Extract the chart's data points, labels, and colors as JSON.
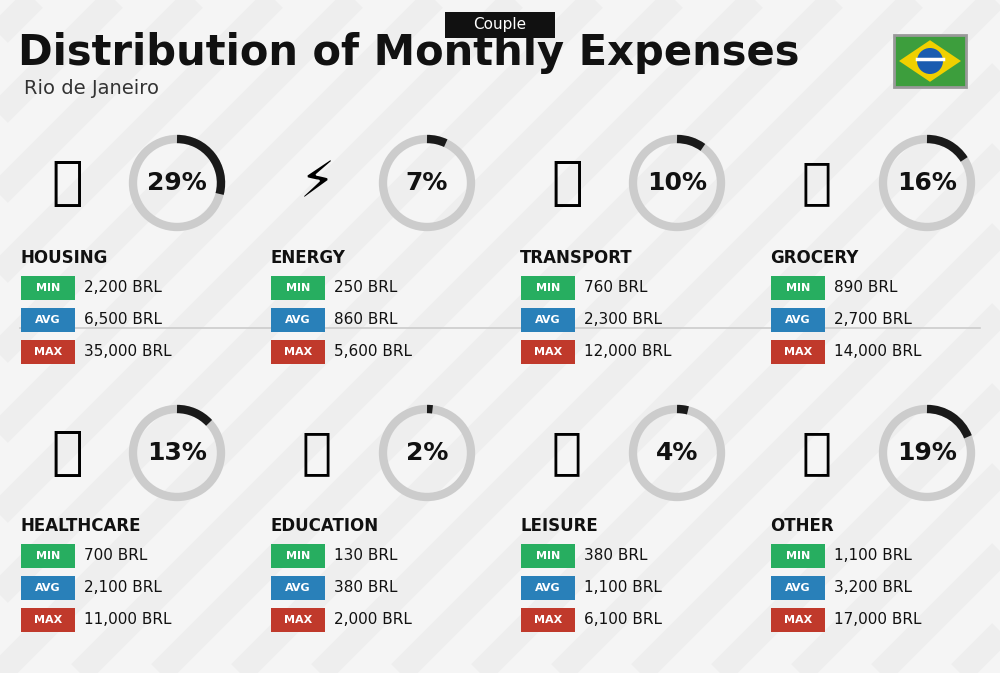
{
  "title": "Distribution of Monthly Expenses",
  "subtitle": "Rio de Janeiro",
  "tag": "Couple",
  "bg_color": "#f5f5f5",
  "categories": [
    {
      "name": "HOUSING",
      "pct": 29,
      "min": "2,200 BRL",
      "avg": "6,500 BRL",
      "max": "35,000 BRL",
      "row": 0,
      "col": 0
    },
    {
      "name": "ENERGY",
      "pct": 7,
      "min": "250 BRL",
      "avg": "860 BRL",
      "max": "5,600 BRL",
      "row": 0,
      "col": 1
    },
    {
      "name": "TRANSPORT",
      "pct": 10,
      "min": "760 BRL",
      "avg": "2,300 BRL",
      "max": "12,000 BRL",
      "row": 0,
      "col": 2
    },
    {
      "name": "GROCERY",
      "pct": 16,
      "min": "890 BRL",
      "avg": "2,700 BRL",
      "max": "14,000 BRL",
      "row": 0,
      "col": 3
    },
    {
      "name": "HEALTHCARE",
      "pct": 13,
      "min": "700 BRL",
      "avg": "2,100 BRL",
      "max": "11,000 BRL",
      "row": 1,
      "col": 0
    },
    {
      "name": "EDUCATION",
      "pct": 2,
      "min": "130 BRL",
      "avg": "380 BRL",
      "max": "2,000 BRL",
      "row": 1,
      "col": 1
    },
    {
      "name": "LEISURE",
      "pct": 4,
      "min": "380 BRL",
      "avg": "1,100 BRL",
      "max": "6,100 BRL",
      "row": 1,
      "col": 2
    },
    {
      "name": "OTHER",
      "pct": 19,
      "min": "1,100 BRL",
      "avg": "3,200 BRL",
      "max": "17,000 BRL",
      "row": 1,
      "col": 3
    }
  ],
  "color_min": "#27ae60",
  "color_avg": "#2980b9",
  "color_max": "#c0392b",
  "donut_dark": "#1a1a1a",
  "donut_light": "#cccccc",
  "tag_bg": "#111111",
  "tag_fg": "#ffffff",
  "stripe_color": "#e8e8e8",
  "title_fontsize": 30,
  "subtitle_fontsize": 14,
  "cat_fontsize": 12,
  "val_fontsize": 11,
  "pct_fontsize": 18,
  "badge_label_fontsize": 8
}
